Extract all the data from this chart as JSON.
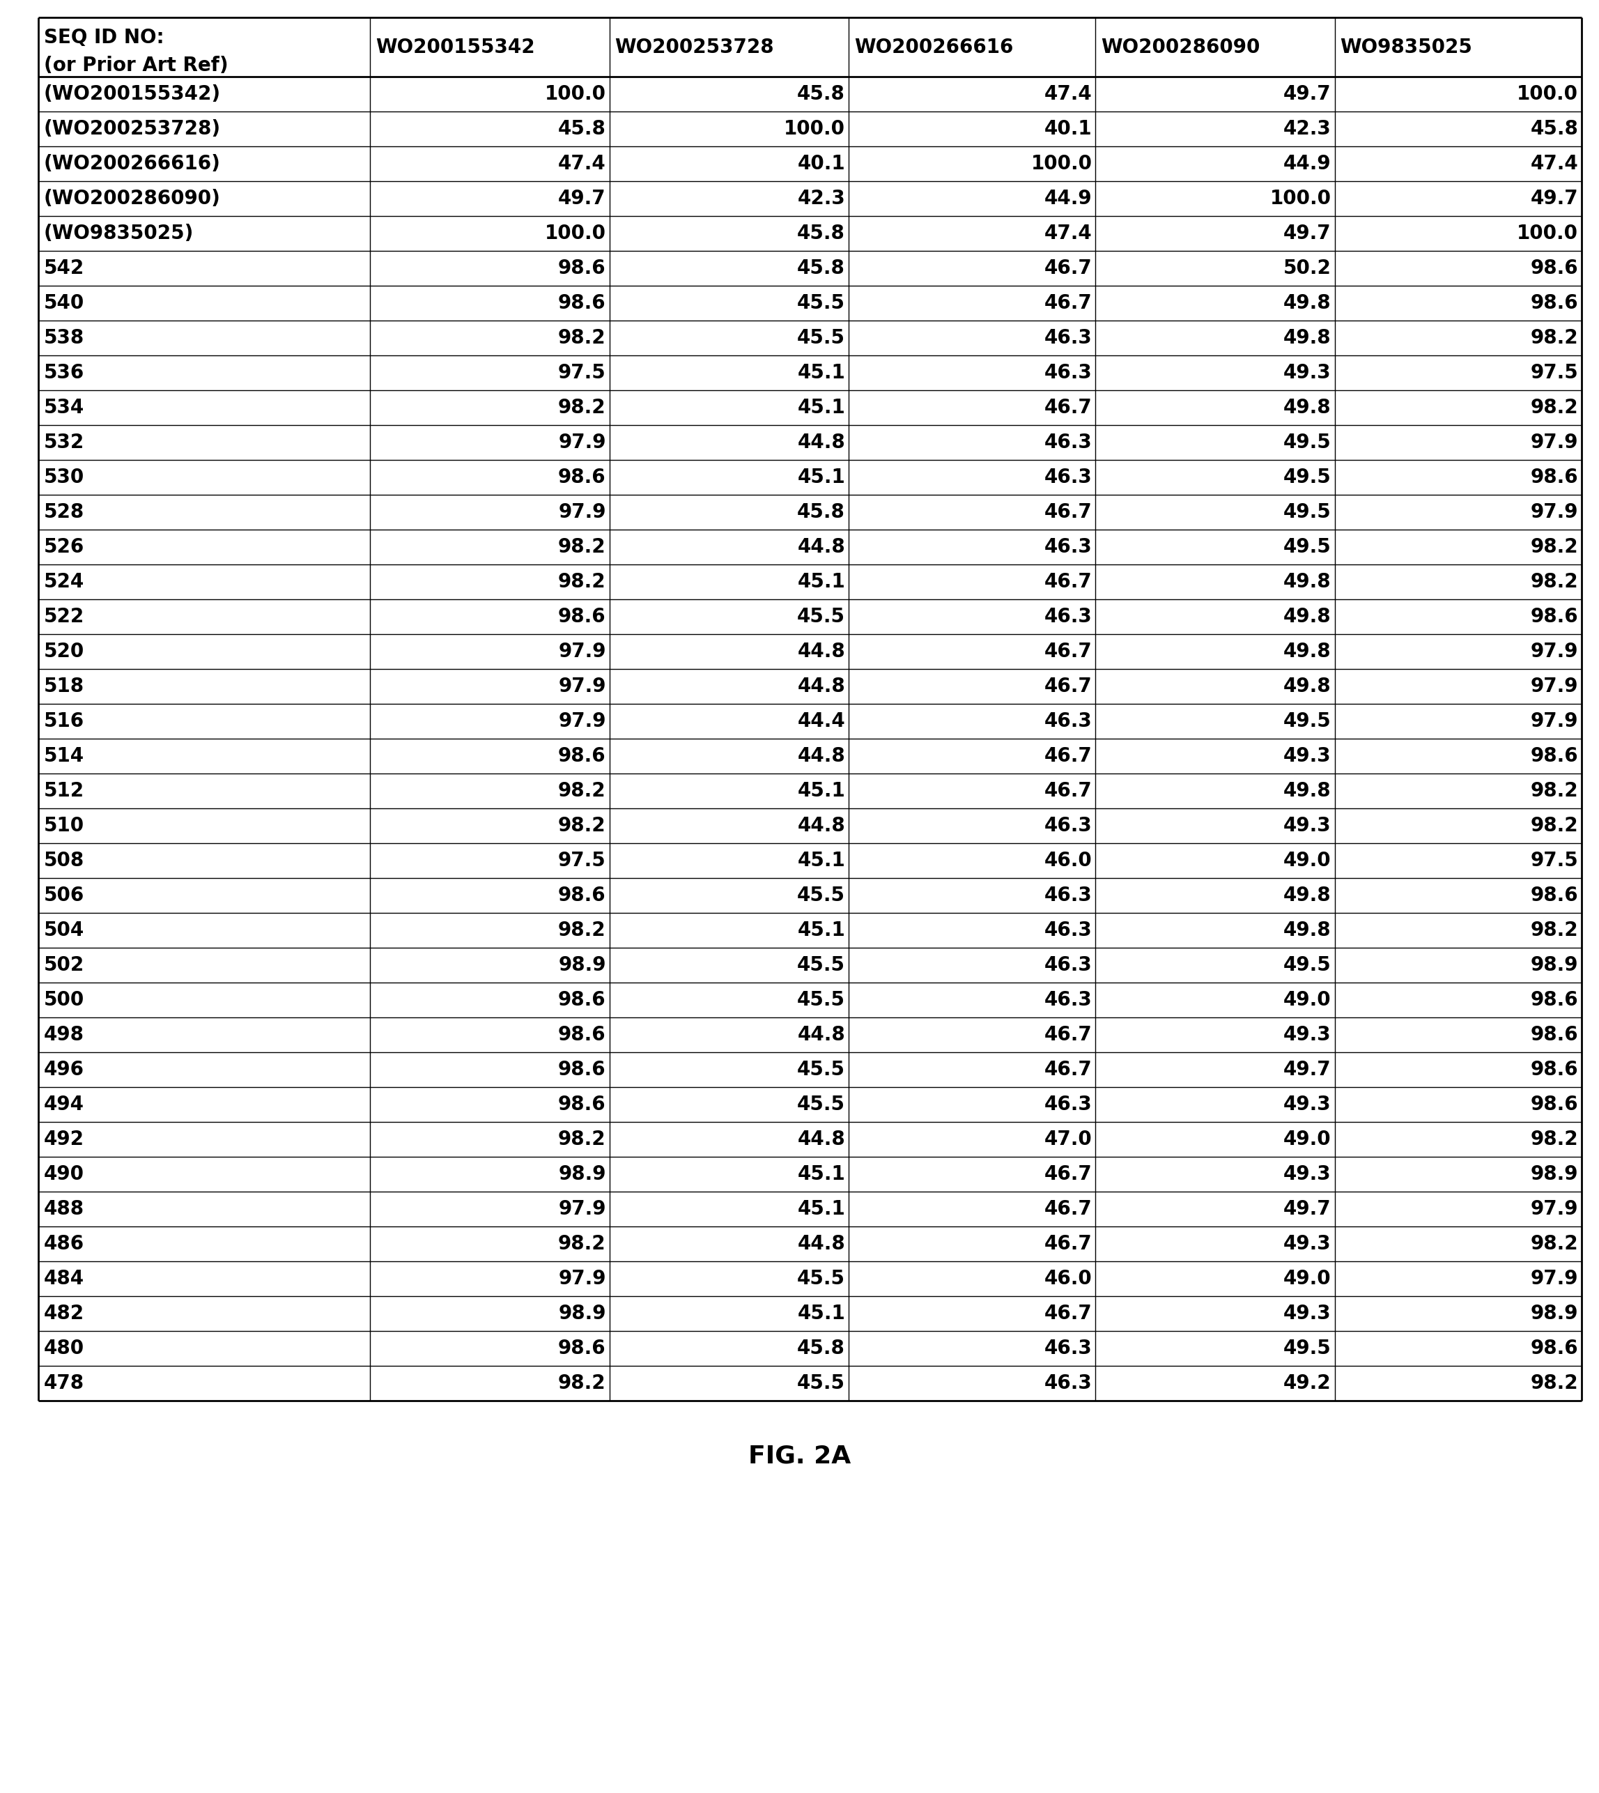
{
  "col_headers_line1": "SEQ ID NO:",
  "col_headers_line2": "(or Prior Art Ref)",
  "col_headers": [
    "WO200155342",
    "WO200253728",
    "WO200266616",
    "WO200286090",
    "WO9835025"
  ],
  "rows": [
    [
      "(WO200155342)",
      "100.0",
      "45.8",
      "47.4",
      "49.7",
      "100.0"
    ],
    [
      "(WO200253728)",
      "45.8",
      "100.0",
      "40.1",
      "42.3",
      "45.8"
    ],
    [
      "(WO200266616)",
      "47.4",
      "40.1",
      "100.0",
      "44.9",
      "47.4"
    ],
    [
      "(WO200286090)",
      "49.7",
      "42.3",
      "44.9",
      "100.0",
      "49.7"
    ],
    [
      "(WO9835025)",
      "100.0",
      "45.8",
      "47.4",
      "49.7",
      "100.0"
    ],
    [
      "542",
      "98.6",
      "45.8",
      "46.7",
      "50.2",
      "98.6"
    ],
    [
      "540",
      "98.6",
      "45.5",
      "46.7",
      "49.8",
      "98.6"
    ],
    [
      "538",
      "98.2",
      "45.5",
      "46.3",
      "49.8",
      "98.2"
    ],
    [
      "536",
      "97.5",
      "45.1",
      "46.3",
      "49.3",
      "97.5"
    ],
    [
      "534",
      "98.2",
      "45.1",
      "46.7",
      "49.8",
      "98.2"
    ],
    [
      "532",
      "97.9",
      "44.8",
      "46.3",
      "49.5",
      "97.9"
    ],
    [
      "530",
      "98.6",
      "45.1",
      "46.3",
      "49.5",
      "98.6"
    ],
    [
      "528",
      "97.9",
      "45.8",
      "46.7",
      "49.5",
      "97.9"
    ],
    [
      "526",
      "98.2",
      "44.8",
      "46.3",
      "49.5",
      "98.2"
    ],
    [
      "524",
      "98.2",
      "45.1",
      "46.7",
      "49.8",
      "98.2"
    ],
    [
      "522",
      "98.6",
      "45.5",
      "46.3",
      "49.8",
      "98.6"
    ],
    [
      "520",
      "97.9",
      "44.8",
      "46.7",
      "49.8",
      "97.9"
    ],
    [
      "518",
      "97.9",
      "44.8",
      "46.7",
      "49.8",
      "97.9"
    ],
    [
      "516",
      "97.9",
      "44.4",
      "46.3",
      "49.5",
      "97.9"
    ],
    [
      "514",
      "98.6",
      "44.8",
      "46.7",
      "49.3",
      "98.6"
    ],
    [
      "512",
      "98.2",
      "45.1",
      "46.7",
      "49.8",
      "98.2"
    ],
    [
      "510",
      "98.2",
      "44.8",
      "46.3",
      "49.3",
      "98.2"
    ],
    [
      "508",
      "97.5",
      "45.1",
      "46.0",
      "49.0",
      "97.5"
    ],
    [
      "506",
      "98.6",
      "45.5",
      "46.3",
      "49.8",
      "98.6"
    ],
    [
      "504",
      "98.2",
      "45.1",
      "46.3",
      "49.8",
      "98.2"
    ],
    [
      "502",
      "98.9",
      "45.5",
      "46.3",
      "49.5",
      "98.9"
    ],
    [
      "500",
      "98.6",
      "45.5",
      "46.3",
      "49.0",
      "98.6"
    ],
    [
      "498",
      "98.6",
      "44.8",
      "46.7",
      "49.3",
      "98.6"
    ],
    [
      "496",
      "98.6",
      "45.5",
      "46.7",
      "49.7",
      "98.6"
    ],
    [
      "494",
      "98.6",
      "45.5",
      "46.3",
      "49.3",
      "98.6"
    ],
    [
      "492",
      "98.2",
      "44.8",
      "47.0",
      "49.0",
      "98.2"
    ],
    [
      "490",
      "98.9",
      "45.1",
      "46.7",
      "49.3",
      "98.9"
    ],
    [
      "488",
      "97.9",
      "45.1",
      "46.7",
      "49.7",
      "97.9"
    ],
    [
      "486",
      "98.2",
      "44.8",
      "46.7",
      "49.3",
      "98.2"
    ],
    [
      "484",
      "97.9",
      "45.5",
      "46.0",
      "49.0",
      "97.9"
    ],
    [
      "482",
      "98.9",
      "45.1",
      "46.7",
      "49.3",
      "98.9"
    ],
    [
      "480",
      "98.6",
      "45.8",
      "46.3",
      "49.5",
      "98.6"
    ],
    [
      "478",
      "98.2",
      "45.5",
      "46.3",
      "49.2",
      "98.2"
    ]
  ],
  "figure_caption": "FIG. 2A",
  "bg_color": "#ffffff",
  "text_color": "#000000",
  "line_color": "#000000",
  "header_fontsize": 20,
  "data_fontsize": 20,
  "caption_fontsize": 26
}
